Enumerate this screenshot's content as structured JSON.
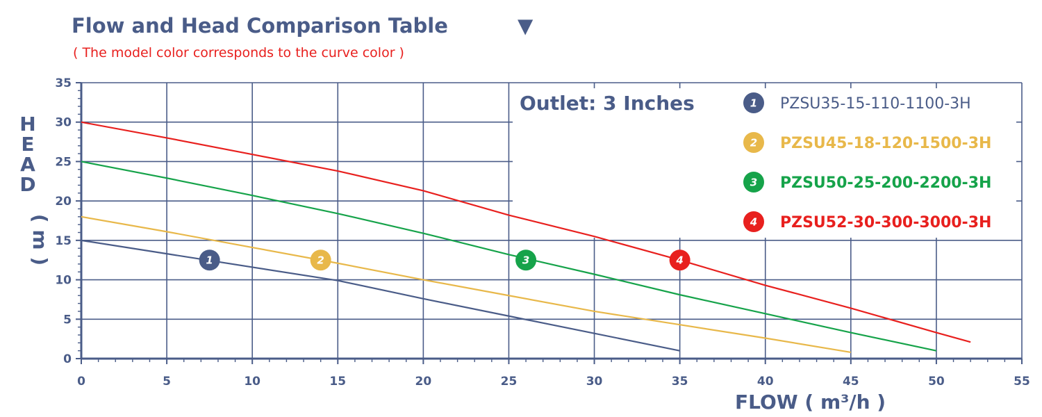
{
  "chart_data": {
    "type": "line",
    "title": "Flow and Head Comparison Table",
    "title_marker": "▼",
    "subtitle": "( The model color corresponds to the curve color )",
    "xlabel": "FLOW ( m³/h )",
    "ylabel": "HEAD ( m )",
    "xlim": [
      0,
      55
    ],
    "ylim": [
      0,
      35
    ],
    "xticks": [
      0,
      5,
      10,
      15,
      20,
      25,
      30,
      35,
      40,
      45,
      50,
      55
    ],
    "yticks": [
      0,
      5,
      10,
      15,
      20,
      25,
      30,
      35
    ],
    "grid": true,
    "annotation": "Outlet: 3 Inches",
    "legend_position": "top-right",
    "series": [
      {
        "name": "PZSU35-15-110-1100-3H",
        "marker": "1",
        "color": "#4a5c88",
        "marker_at": [
          7.5,
          12.5
        ],
        "points": [
          [
            0,
            15
          ],
          [
            5,
            13.3
          ],
          [
            10,
            11.6
          ],
          [
            15,
            9.9
          ],
          [
            20,
            7.6
          ],
          [
            25,
            5.4
          ],
          [
            30,
            3.2
          ],
          [
            35,
            1.0
          ]
        ]
      },
      {
        "name": "PZSU45-18-120-1500-3H",
        "marker": "2",
        "color": "#e8b84a",
        "marker_at": [
          14,
          12.5
        ],
        "points": [
          [
            0,
            18
          ],
          [
            5,
            16.1
          ],
          [
            10,
            14.1
          ],
          [
            15,
            12.1
          ],
          [
            20,
            10.0
          ],
          [
            25,
            8.0
          ],
          [
            30,
            6.0
          ],
          [
            35,
            4.3
          ],
          [
            40,
            2.6
          ],
          [
            45,
            0.8
          ]
        ]
      },
      {
        "name": "PZSU50-25-200-2200-3H",
        "marker": "3",
        "color": "#16a34a",
        "marker_at": [
          26,
          12.5
        ],
        "points": [
          [
            0,
            25
          ],
          [
            5,
            22.9
          ],
          [
            10,
            20.7
          ],
          [
            15,
            18.4
          ],
          [
            20,
            15.9
          ],
          [
            25,
            13.2
          ],
          [
            30,
            10.7
          ],
          [
            35,
            8.1
          ],
          [
            40,
            5.7
          ],
          [
            45,
            3.3
          ],
          [
            50,
            1.0
          ]
        ]
      },
      {
        "name": "PZSU52-30-300-3000-3H",
        "marker": "4",
        "color": "#e8201e",
        "marker_at": [
          35,
          12.5
        ],
        "points": [
          [
            0,
            30
          ],
          [
            5,
            28.0
          ],
          [
            10,
            25.9
          ],
          [
            15,
            23.8
          ],
          [
            20,
            21.3
          ],
          [
            25,
            18.2
          ],
          [
            30,
            15.5
          ],
          [
            35,
            12.5
          ],
          [
            40,
            9.3
          ],
          [
            45,
            6.4
          ],
          [
            50,
            3.3
          ],
          [
            52,
            2.1
          ]
        ]
      }
    ]
  }
}
